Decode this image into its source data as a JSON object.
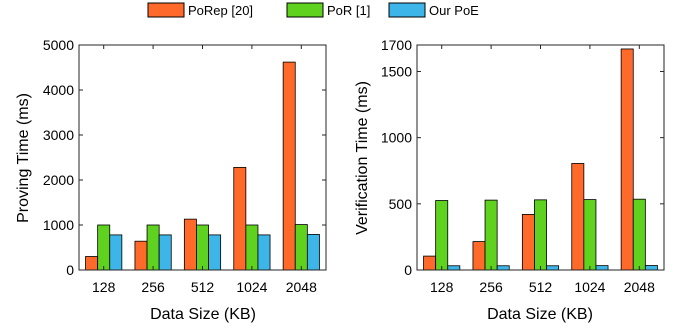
{
  "legend": [
    {
      "label": "PoRep [20]",
      "color": "#FF6A2A"
    },
    {
      "label": "PoR [1]",
      "color": "#5FD11F"
    },
    {
      "label": "Our PoE",
      "color": "#3DB5E8"
    }
  ],
  "chart_data": [
    {
      "type": "bar",
      "categories": [
        "128",
        "256",
        "512",
        "1024",
        "2048"
      ],
      "series": [
        {
          "name": "PoRep [20]",
          "values": [
            300,
            640,
            1130,
            2280,
            4620
          ]
        },
        {
          "name": "PoR [1]",
          "values": [
            1000,
            1000,
            1000,
            1000,
            1010
          ]
        },
        {
          "name": "Our PoE",
          "values": [
            780,
            780,
            780,
            780,
            790
          ]
        }
      ],
      "xlabel": "Data Size (KB)",
      "ylabel": "Proving Time (ms)",
      "ylim": [
        0,
        5000
      ],
      "yticks": [
        0,
        1000,
        2000,
        3000,
        4000,
        5000
      ],
      "ytick_labels": [
        "0",
        "1000",
        "2000",
        "3000",
        "4000",
        "5000"
      ],
      "grid": false,
      "legend_position": "top"
    },
    {
      "type": "bar",
      "categories": [
        "128",
        "256",
        "512",
        "1024",
        "2048"
      ],
      "series": [
        {
          "name": "PoRep [20]",
          "values": [
            105,
            215,
            420,
            805,
            1670
          ]
        },
        {
          "name": "PoR [1]",
          "values": [
            525,
            528,
            530,
            532,
            535
          ]
        },
        {
          "name": "Our PoE",
          "values": [
            32,
            32,
            32,
            33,
            34
          ]
        }
      ],
      "xlabel": "Data Size (KB)",
      "ylabel": "Verification Time (ms)",
      "ylim": [
        0,
        1700
      ],
      "yticks": [
        0,
        500,
        1000,
        1500,
        1700
      ],
      "ytick_labels": [
        "0",
        "500",
        "1000",
        "1500",
        "1700"
      ],
      "grid": false,
      "legend_position": "top"
    }
  ]
}
